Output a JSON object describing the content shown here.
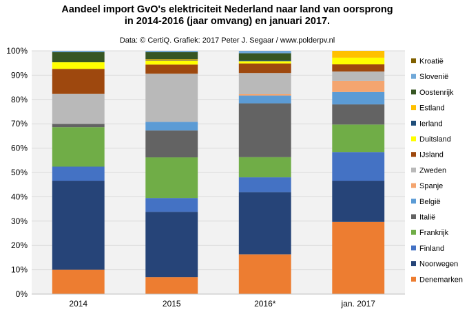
{
  "chart_data": {
    "type": "bar",
    "stacked": true,
    "title_line1": "Aandeel import GvO's elektriciteit  Nederland naar land van oorsprong",
    "title_line2": "in 2014-2016 (jaar omvang) en januari 2017.",
    "subtitle": "Data: © CertiQ. Grafiek: 2017 Peter J. Segaar / www.polderpv.nl",
    "categories": [
      "2014",
      "2015",
      "2016*",
      "jan. 2017"
    ],
    "ylim": [
      0,
      100
    ],
    "yticks": [
      "0%",
      "10%",
      "20%",
      "30%",
      "40%",
      "50%",
      "60%",
      "70%",
      "80%",
      "90%",
      "100%"
    ],
    "grid": true,
    "legend_position": "right",
    "series": [
      {
        "name": "Denemarken",
        "color": "#ED7D31",
        "values": [
          10.0,
          7.0,
          16.3,
          29.7
        ]
      },
      {
        "name": "Noorwegen",
        "color": "#264478",
        "values": [
          36.6,
          26.8,
          25.6,
          16.9
        ]
      },
      {
        "name": "Finland",
        "color": "#4472C4",
        "values": [
          5.8,
          5.7,
          6.1,
          11.8
        ]
      },
      {
        "name": "Frankrijk",
        "color": "#70AD47",
        "values": [
          16.2,
          16.7,
          8.3,
          11.3
        ]
      },
      {
        "name": "Italië",
        "color": "#636363",
        "values": [
          1.4,
          11.1,
          22.1,
          8.3
        ]
      },
      {
        "name": "België",
        "color": "#5B9BD5",
        "values": [
          0.0,
          3.5,
          3.2,
          5.1
        ]
      },
      {
        "name": "Spanje",
        "color": "#F4A56F",
        "values": [
          0.0,
          0.0,
          0.6,
          4.5
        ]
      },
      {
        "name": "Zweden",
        "color": "#B9B9B9",
        "values": [
          12.3,
          19.8,
          8.7,
          3.9
        ]
      },
      {
        "name": "IJsland",
        "color": "#9E480E",
        "values": [
          10.3,
          3.8,
          3.9,
          3.0
        ]
      },
      {
        "name": "Duitsland",
        "color": "#FFFF00",
        "values": [
          2.8,
          1.4,
          0.9,
          2.7
        ]
      },
      {
        "name": "Ierland",
        "color": "#1F4E79",
        "values": [
          0.0,
          0.2,
          0.3,
          0.0
        ]
      },
      {
        "name": "Estland",
        "color": "#FFC000",
        "values": [
          0.0,
          0.5,
          0.0,
          2.8
        ]
      },
      {
        "name": "Oostenrijk",
        "color": "#375623",
        "values": [
          4.1,
          3.0,
          3.0,
          0.0
        ]
      },
      {
        "name": "Slovenië",
        "color": "#70A8D8",
        "values": [
          0.5,
          0.5,
          1.0,
          0.0
        ]
      },
      {
        "name": "Kroatië",
        "color": "#806000",
        "values": [
          0.0,
          0.0,
          0.0,
          0.0
        ]
      }
    ]
  }
}
